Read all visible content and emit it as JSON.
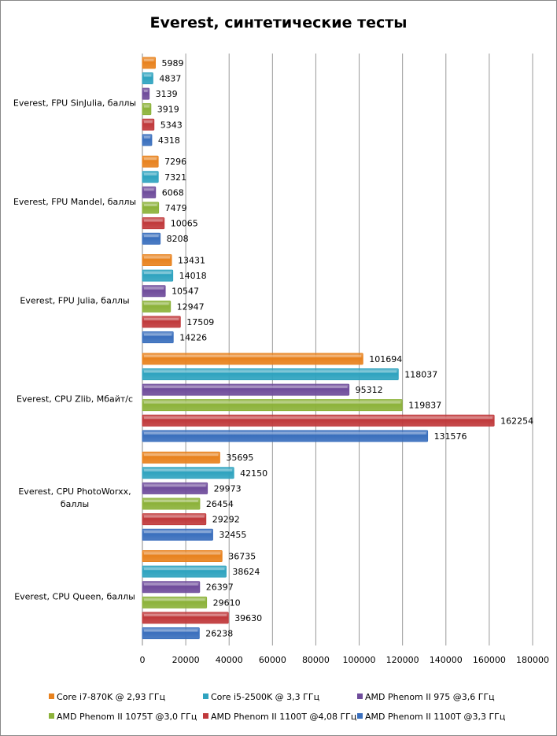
{
  "chart_data": {
    "type": "bar",
    "orientation": "horizontal",
    "title": "Everest, синтетические тесты",
    "categories": [
      "Everest, FPU SinJulia, баллы",
      "Everest, FPU Mandel, баллы",
      "Everest, FPU Julia, баллы",
      "Everest, CPU Zlib,  Мбайт/с",
      "Everest, CPU PhotoWorxx, баллы",
      "Everest, CPU Queen, баллы"
    ],
    "series": [
      {
        "name": "Core i7-870K @ 2,93 ГГц",
        "color": "#e8821e",
        "values": [
          5989,
          7296,
          13431,
          101694,
          35695,
          36735
        ]
      },
      {
        "name": "Core i5-2500K @ 3,3 ГГц",
        "color": "#2fa3bf",
        "values": [
          4837,
          7321,
          14018,
          118037,
          42150,
          38624
        ]
      },
      {
        "name": "AMD Phenom II 975 @3,6 ГГц",
        "color": "#6f4c9b",
        "values": [
          3139,
          6068,
          10547,
          95312,
          29973,
          26397
        ]
      },
      {
        "name": "AMD Phenom II 1075T @3,0 ГГц",
        "color": "#8cb23a",
        "values": [
          3919,
          7479,
          12947,
          119837,
          26454,
          29610
        ]
      },
      {
        "name": "AMD Phenom II 1100T @4,08 ГГц",
        "color": "#c0393b",
        "values": [
          5343,
          10065,
          17509,
          162254,
          29292,
          39630
        ]
      },
      {
        "name": "AMD Phenom II 1100T @3,3 ГГц",
        "color": "#3a6fbd",
        "values": [
          4318,
          8208,
          14226,
          131576,
          32455,
          26238
        ]
      }
    ],
    "xlim": [
      0,
      180000
    ],
    "xticks": [
      "0",
      "20000",
      "40000",
      "60000",
      "80000",
      "100000",
      "120000",
      "140000",
      "160000",
      "180000"
    ],
    "grid": true,
    "legend": "bottom"
  }
}
